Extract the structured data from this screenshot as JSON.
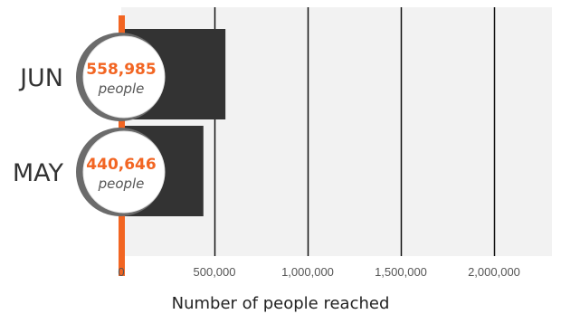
{
  "chart_data": {
    "type": "bar",
    "orientation": "horizontal",
    "categories": [
      "JUN",
      "MAY"
    ],
    "values": [
      558985,
      440646
    ],
    "value_labels": [
      "558,985",
      "440,646"
    ],
    "unit_label": "people",
    "xlabel": "Number of  people reached",
    "ylabel": "",
    "xlim": [
      0,
      2400000
    ],
    "xticks": [
      0,
      500000,
      1000000,
      1500000,
      2000000
    ],
    "xtick_labels": [
      "0",
      "500,000",
      "1,000,000",
      "1,500,000",
      "2,000,000"
    ],
    "grid": true,
    "legend": "none"
  },
  "colors": {
    "bar": "#333333",
    "axis_accent": "#f26522",
    "value_text": "#f26522",
    "plot_background": "#f2f2f2",
    "gridline": "#111111"
  }
}
